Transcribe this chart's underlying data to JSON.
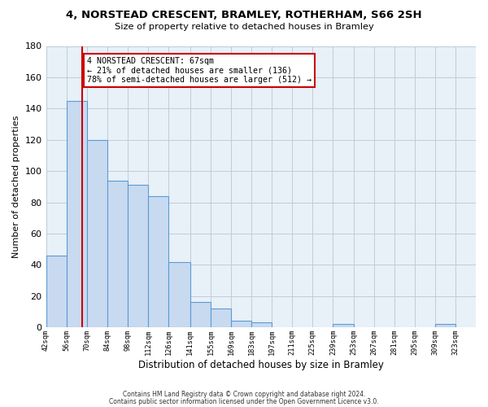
{
  "title": "4, NORSTEAD CRESCENT, BRAMLEY, ROTHERHAM, S66 2SH",
  "subtitle": "Size of property relative to detached houses in Bramley",
  "xlabel": "Distribution of detached houses by size in Bramley",
  "ylabel": "Number of detached properties",
  "bar_left_edges": [
    42,
    56,
    70,
    84,
    98,
    112,
    126,
    141,
    155,
    169,
    183,
    197,
    211,
    225,
    239,
    253,
    267,
    281,
    295,
    309
  ],
  "bar_widths": [
    14,
    14,
    14,
    14,
    14,
    14,
    15,
    14,
    14,
    14,
    14,
    14,
    14,
    14,
    14,
    14,
    14,
    14,
    14,
    14
  ],
  "bar_heights": [
    46,
    145,
    120,
    94,
    91,
    84,
    42,
    16,
    12,
    4,
    3,
    0,
    0,
    0,
    2,
    0,
    0,
    0,
    0,
    2
  ],
  "bar_color": "#c8daf0",
  "bar_edge_color": "#5b9bd5",
  "ylim": [
    0,
    180
  ],
  "yticks": [
    0,
    20,
    40,
    60,
    80,
    100,
    120,
    140,
    160,
    180
  ],
  "xtick_labels": [
    "42sqm",
    "56sqm",
    "70sqm",
    "84sqm",
    "98sqm",
    "112sqm",
    "126sqm",
    "141sqm",
    "155sqm",
    "169sqm",
    "183sqm",
    "197sqm",
    "211sqm",
    "225sqm",
    "239sqm",
    "253sqm",
    "267sqm",
    "281sqm",
    "295sqm",
    "309sqm",
    "323sqm"
  ],
  "xtick_positions": [
    42,
    56,
    70,
    84,
    98,
    112,
    126,
    141,
    155,
    169,
    183,
    197,
    211,
    225,
    239,
    253,
    267,
    281,
    295,
    309,
    323
  ],
  "property_line_x": 67,
  "property_line_color": "#cc0000",
  "annotation_text": "4 NORSTEAD CRESCENT: 67sqm\n← 21% of detached houses are smaller (136)\n78% of semi-detached houses are larger (512) →",
  "annotation_box_color": "#ffffff",
  "annotation_box_edge": "#cc0000",
  "footer_line1": "Contains HM Land Registry data © Crown copyright and database right 2024.",
  "footer_line2": "Contains public sector information licensed under the Open Government Licence v3.0.",
  "bg_color": "#ffffff",
  "plot_bg_color": "#e8f0f8",
  "grid_color": "#c0ccd8"
}
